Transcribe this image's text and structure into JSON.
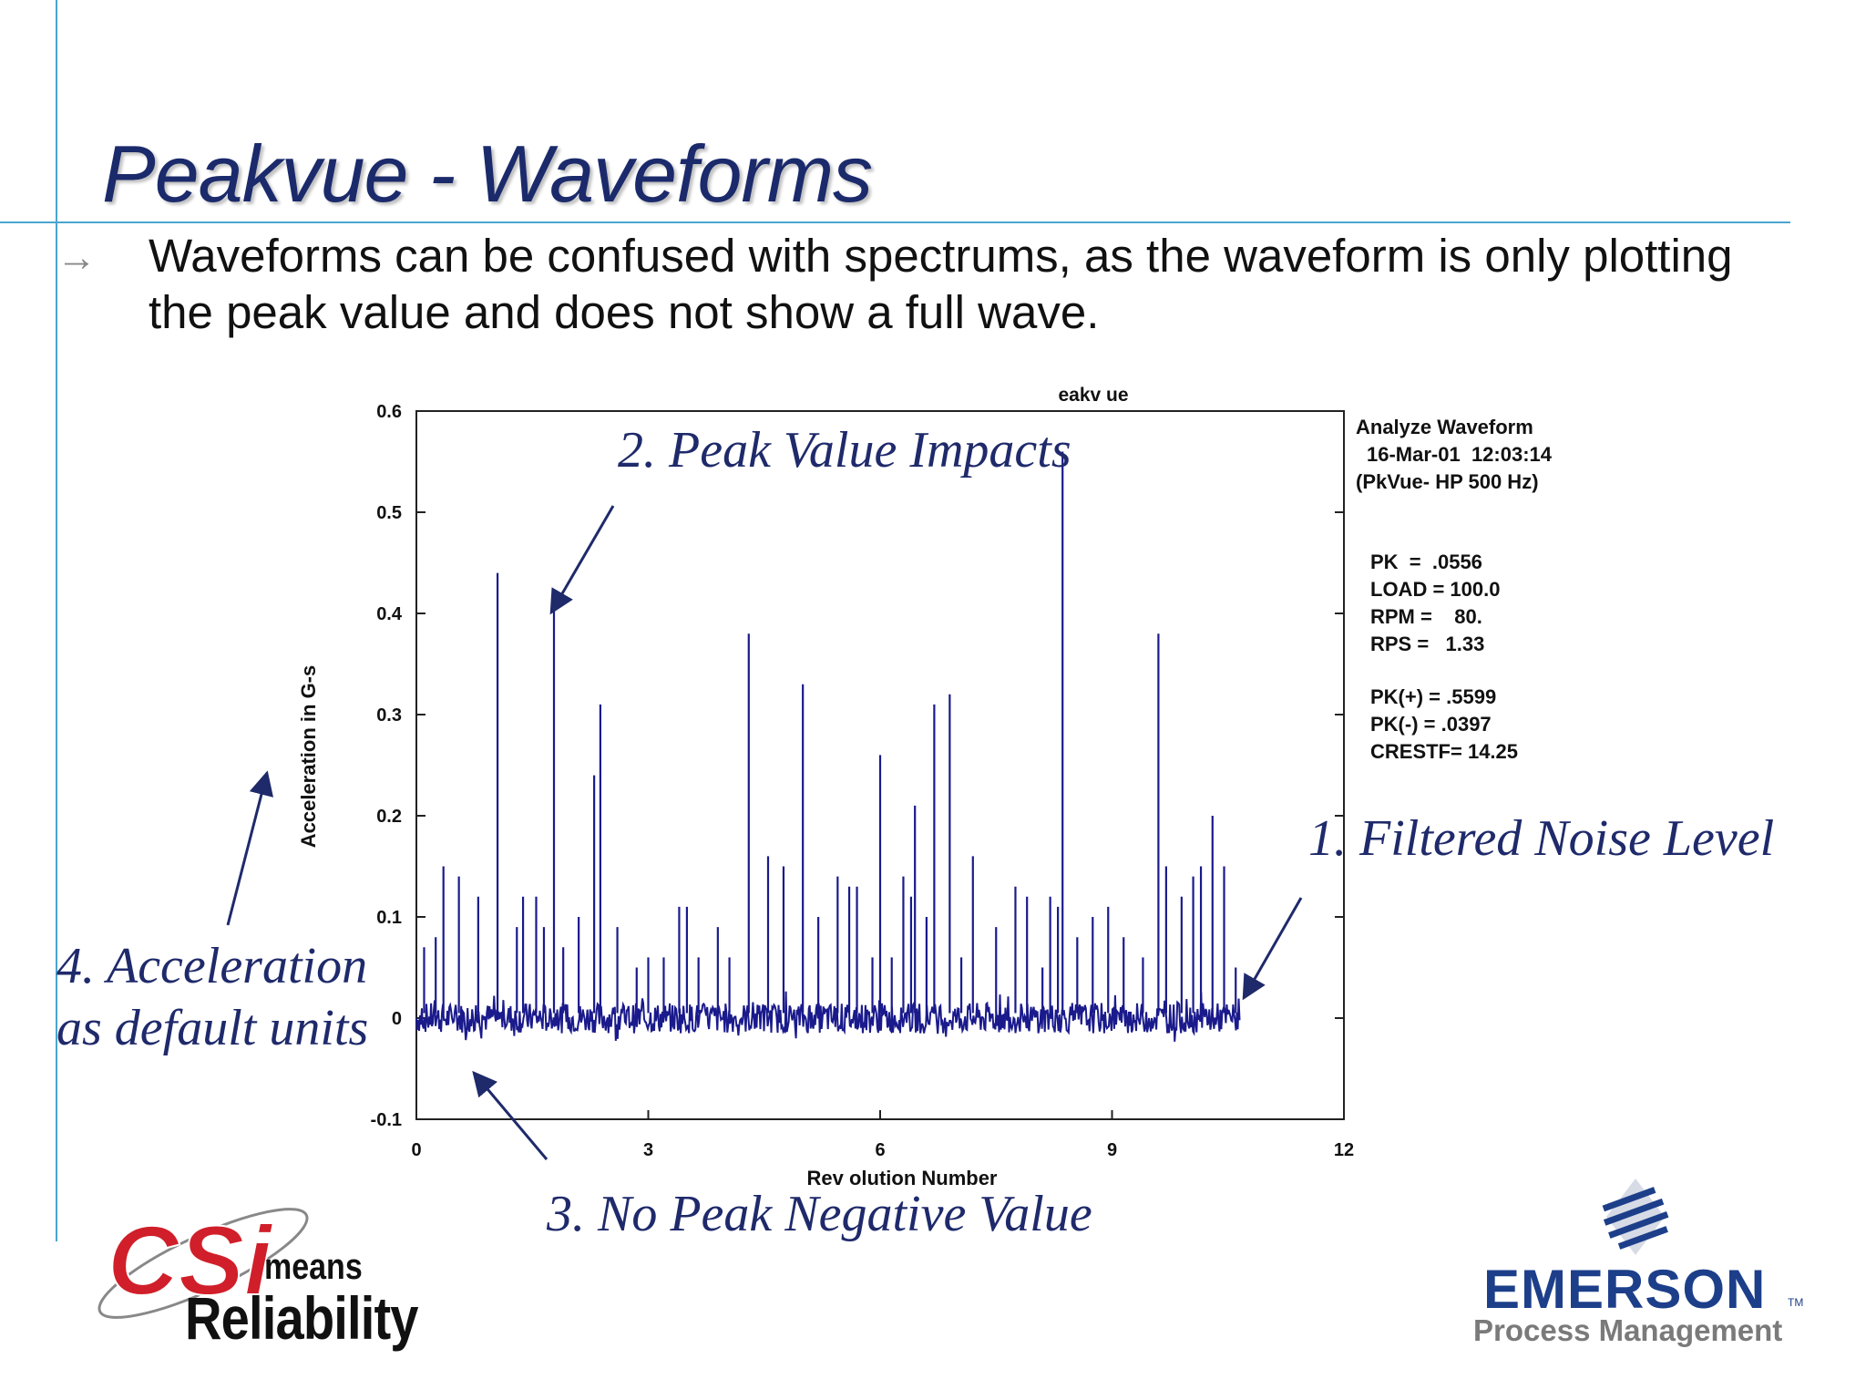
{
  "slide": {
    "title": "Peakvue - Waveforms",
    "bullet": "Waveforms can be confused with spectrums, as the waveform is only plotting the peak value and does not show a full wave."
  },
  "annotations": {
    "a1": "1. Filtered Noise Level",
    "a2": "2. Peak Value Impacts",
    "a3": "3. No Peak Negative Value",
    "a4_line1": "4. Acceleration",
    "a4_line2": "as default units"
  },
  "info_panel": {
    "line1": "Analyze Waveform",
    "line2": "16-Mar-01  12:03:14",
    "line3": "(PkVue- HP 500 Hz)",
    "stats": [
      "PK  =  .0556",
      "LOAD = 100.0",
      "RPM =    80.",
      "RPS =   1.33"
    ],
    "stats2": [
      "PK(+) = .5599",
      "PK(-) = .0397",
      "CRESTF= 14.25"
    ]
  },
  "logos": {
    "csi": "CSi",
    "csi_means": "means",
    "csi_reliability": "Reliability",
    "emerson": "EMERSON",
    "emerson_tm": "TM",
    "emerson_sub": "Process Management"
  },
  "colors": {
    "trace": "#1a1a8c",
    "title": "#1b2a6b",
    "rule": "#4aa6cf",
    "csi_red": "#d01f2a",
    "emerson_blue": "#1d3f8a"
  },
  "chart_data": {
    "type": "line",
    "title": "eakv ue",
    "xlabel": "Rev olution Number",
    "ylabel": "Acceleration in G-s",
    "xlim": [
      0,
      12
    ],
    "ylim": [
      -0.1,
      0.6
    ],
    "xticks": [
      0,
      3,
      6,
      9,
      12
    ],
    "yticks": [
      -0.1,
      0,
      0.1,
      0.2,
      0.3,
      0.4,
      0.5,
      0.6
    ],
    "grid": false,
    "noise_floor": 0.0,
    "noise_amplitude": 0.03,
    "x_end": 10.65,
    "impacts": [
      {
        "x": 0.1,
        "y": 0.07
      },
      {
        "x": 0.25,
        "y": 0.08
      },
      {
        "x": 0.35,
        "y": 0.15
      },
      {
        "x": 0.55,
        "y": 0.14
      },
      {
        "x": 0.8,
        "y": 0.12
      },
      {
        "x": 1.05,
        "y": 0.44
      },
      {
        "x": 1.3,
        "y": 0.09
      },
      {
        "x": 1.38,
        "y": 0.12
      },
      {
        "x": 1.55,
        "y": 0.12
      },
      {
        "x": 1.65,
        "y": 0.09
      },
      {
        "x": 1.78,
        "y": 0.41
      },
      {
        "x": 1.9,
        "y": 0.07
      },
      {
        "x": 2.1,
        "y": 0.1
      },
      {
        "x": 2.3,
        "y": 0.24
      },
      {
        "x": 2.38,
        "y": 0.31
      },
      {
        "x": 2.6,
        "y": 0.09
      },
      {
        "x": 2.85,
        "y": 0.05
      },
      {
        "x": 3.0,
        "y": 0.06
      },
      {
        "x": 3.2,
        "y": 0.06
      },
      {
        "x": 3.4,
        "y": 0.11
      },
      {
        "x": 3.5,
        "y": 0.11
      },
      {
        "x": 3.65,
        "y": 0.06
      },
      {
        "x": 3.9,
        "y": 0.09
      },
      {
        "x": 4.05,
        "y": 0.06
      },
      {
        "x": 4.3,
        "y": 0.38
      },
      {
        "x": 4.55,
        "y": 0.16
      },
      {
        "x": 4.75,
        "y": 0.15
      },
      {
        "x": 5.0,
        "y": 0.33
      },
      {
        "x": 5.2,
        "y": 0.1
      },
      {
        "x": 5.45,
        "y": 0.14
      },
      {
        "x": 5.6,
        "y": 0.13
      },
      {
        "x": 5.7,
        "y": 0.13
      },
      {
        "x": 5.9,
        "y": 0.06
      },
      {
        "x": 6.0,
        "y": 0.26
      },
      {
        "x": 6.15,
        "y": 0.06
      },
      {
        "x": 6.3,
        "y": 0.14
      },
      {
        "x": 6.4,
        "y": 0.12
      },
      {
        "x": 6.45,
        "y": 0.21
      },
      {
        "x": 6.6,
        "y": 0.1
      },
      {
        "x": 6.7,
        "y": 0.31
      },
      {
        "x": 6.9,
        "y": 0.32
      },
      {
        "x": 7.05,
        "y": 0.06
      },
      {
        "x": 7.2,
        "y": 0.16
      },
      {
        "x": 7.5,
        "y": 0.09
      },
      {
        "x": 7.75,
        "y": 0.13
      },
      {
        "x": 7.9,
        "y": 0.12
      },
      {
        "x": 8.1,
        "y": 0.05
      },
      {
        "x": 8.2,
        "y": 0.12
      },
      {
        "x": 8.3,
        "y": 0.11
      },
      {
        "x": 8.36,
        "y": 0.5599
      },
      {
        "x": 8.55,
        "y": 0.08
      },
      {
        "x": 8.75,
        "y": 0.1
      },
      {
        "x": 8.95,
        "y": 0.11
      },
      {
        "x": 9.15,
        "y": 0.08
      },
      {
        "x": 9.4,
        "y": 0.06
      },
      {
        "x": 9.6,
        "y": 0.38
      },
      {
        "x": 9.7,
        "y": 0.15
      },
      {
        "x": 9.9,
        "y": 0.12
      },
      {
        "x": 10.05,
        "y": 0.14
      },
      {
        "x": 10.15,
        "y": 0.15
      },
      {
        "x": 10.3,
        "y": 0.2
      },
      {
        "x": 10.45,
        "y": 0.15
      },
      {
        "x": 10.6,
        "y": 0.05
      }
    ]
  }
}
